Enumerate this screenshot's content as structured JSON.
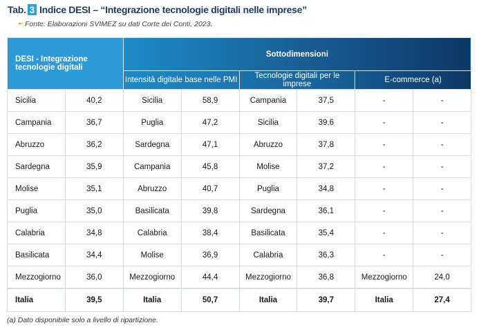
{
  "title": {
    "prefix": "Tab.",
    "number": "3",
    "text": "Indice DESI – “Integrazione tecnologie digitali nelle imprese”"
  },
  "source": "Fonte: Elaborazioni SVIMEZ su dati Corte dei Conti, 2023.",
  "headers": {
    "desi": "DESI - Integrazione tecnologie digitali",
    "sottodimensioni": "Sottodimensioni",
    "sub": [
      "Intensità digitale base nelle PMI",
      "Tecnologie digitali per le imprese",
      "E-commerce (a)"
    ]
  },
  "rows": [
    [
      "Sicilia",
      "40,2",
      "Sicilia",
      "58,9",
      "Campania",
      "37,5",
      "-",
      "-"
    ],
    [
      "Campania",
      "36,7",
      "Puglia",
      "47,2",
      "Sicilia",
      "39,6",
      "-",
      "-"
    ],
    [
      "Abruzzo",
      "36,2",
      "Sardegna",
      "47,1",
      "Abruzzo",
      "37,8",
      "-",
      "-"
    ],
    [
      "Sardegna",
      "35,9",
      "Campania",
      "45,8",
      "Molise",
      "37,2",
      "-",
      "-"
    ],
    [
      "Molise",
      "35,1",
      "Abruzzo",
      "40,7",
      "Puglia",
      "34,8",
      "-",
      "-"
    ],
    [
      "Puglia",
      "35,0",
      "Basilicata",
      "39,8",
      "Sardegna",
      "36,1",
      "-",
      "-"
    ],
    [
      "Calabria",
      "34,8",
      "Calabria",
      "38,4",
      "Basilicata",
      "35,4",
      "-",
      "-"
    ],
    [
      "Basilicata",
      "34,4",
      "Molise",
      "36,9",
      "Calabria",
      "36,3",
      "-",
      "-"
    ],
    [
      "Mezzogiorno",
      "36,0",
      "Mezzogiorno",
      "44,4",
      "Mezzogiorno",
      "36,8",
      "Mezzogiorno",
      "24,0"
    ]
  ],
  "total": [
    "Italia",
    "39,5",
    "Italia",
    "50,7",
    "Italia",
    "39,7",
    "Italia",
    "27,4"
  ],
  "footnote": "(a) Dato disponibile solo a livello di ripartizione."
}
